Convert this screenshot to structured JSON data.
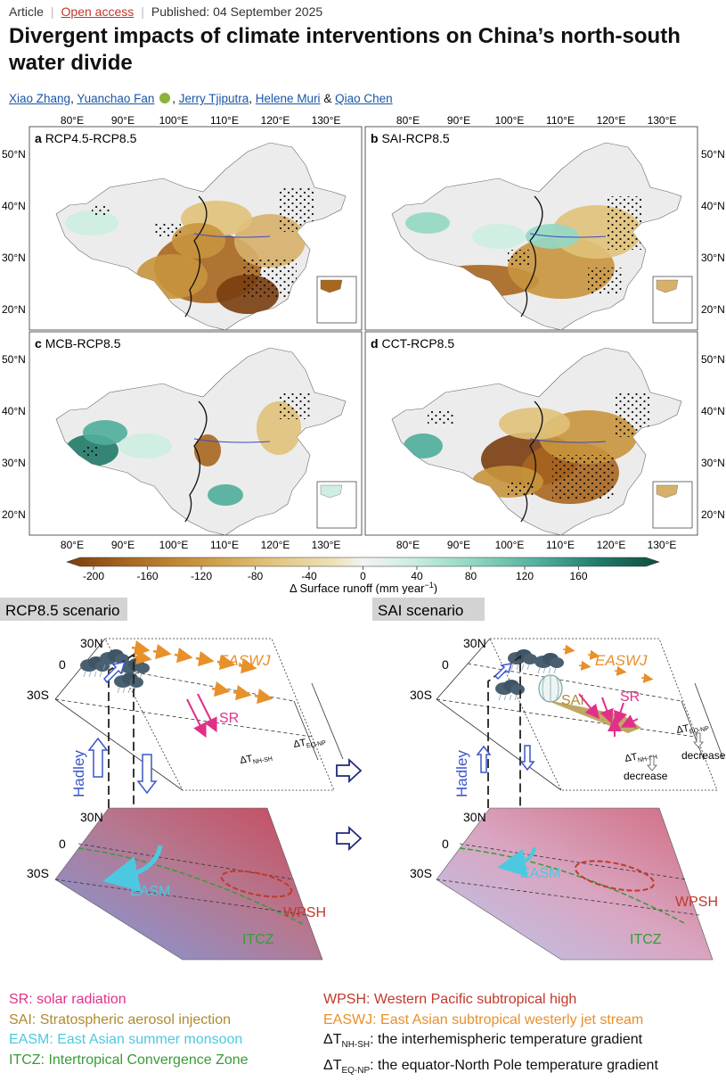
{
  "header": {
    "type": "Article",
    "access": "Open access",
    "published": "Published: 04 September 2025",
    "title": "Divergent impacts of climate interventions on China’s north-south water divide"
  },
  "authors": [
    "Xiao Zhang",
    "Yuanchao Fan",
    "Jerry Tjiputra",
    "Helene Muri",
    "Qiao Chen"
  ],
  "author_sep": ",",
  "author_and": "&",
  "map_figure": {
    "panels": [
      {
        "letter": "a",
        "label": "RCP4.5-RCP8.5"
      },
      {
        "letter": "b",
        "label": "SAI-RCP8.5"
      },
      {
        "letter": "c",
        "label": "MCB-RCP8.5"
      },
      {
        "letter": "d",
        "label": "CCT-RCP8.5"
      }
    ],
    "lon_ticks": [
      "80°E",
      "90°E",
      "100°E",
      "110°E",
      "120°E",
      "130°E"
    ],
    "lat_ticks": [
      "50°N",
      "40°N",
      "30°N",
      "20°N"
    ],
    "colorbar": {
      "ticks": [
        "-200",
        "-160",
        "-120",
        "-80",
        "-40",
        "0",
        "40",
        "80",
        "120",
        "160"
      ],
      "label": "Δ Surface runoff (mm year",
      "label_sup": "−1",
      "label_end": ")",
      "colors": [
        "#7a3d0f",
        "#a8661f",
        "#c9953d",
        "#e0c27a",
        "#efe1b8",
        "#f3f3f1",
        "#cdeee0",
        "#93d8c4",
        "#4fae9a",
        "#217a68",
        "#0d4d40"
      ]
    }
  },
  "mechanism_figure": {
    "scenarios": [
      "RCP8.5 scenario",
      "SAI scenario"
    ],
    "lat_labels": [
      "30N",
      "0",
      "30S"
    ],
    "labels": {
      "easwj": "EASWJ",
      "sr": "SR",
      "sai": "SAI",
      "hadley": "Hadley",
      "easm": "EASM",
      "wpsh": "WPSH",
      "itcz": "ITCZ",
      "dt": "ΔT",
      "nh_sh": "NH-SH",
      "eq_np": "EQ-NP",
      "decrease": "decrease"
    }
  },
  "legend": {
    "left": [
      {
        "abbr": "SR",
        "text": ": solar radiation",
        "color": "#e0308a"
      },
      {
        "abbr": "SAI",
        "text": ": Stratospheric aerosol injection",
        "color": "#b08a2e"
      },
      {
        "abbr": "EASM",
        "text": ": East Asian summer monsoon",
        "color": "#4cc9e0"
      },
      {
        "abbr": "ITCZ",
        "text": ": Intertropical Convergence Zone",
        "color": "#3a9a3a"
      }
    ],
    "right": [
      {
        "abbr": "WPSH",
        "text": ": Western Pacific subtropical high",
        "color": "#c0392b"
      },
      {
        "abbr": "EASWJ",
        "text": ": East Asian subtropical westerly jet stream",
        "color": "#e8902a"
      },
      {
        "abbr": "ΔT",
        "sub": "NH-SH",
        "text": ": the interhemispheric temperature gradient",
        "color": "#111111"
      },
      {
        "abbr": "ΔT",
        "sub": "EQ-NP",
        "text": ": the equator-North Pole temperature gradient",
        "color": "#111111"
      }
    ]
  }
}
